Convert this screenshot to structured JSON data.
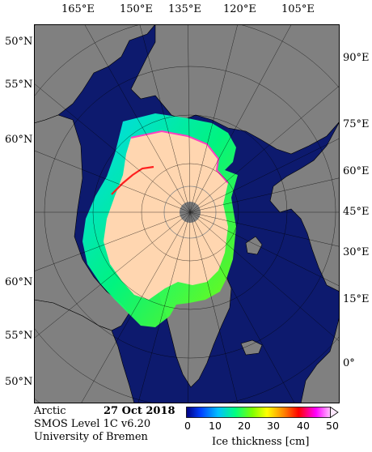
{
  "top_longitudes": [
    "165°E",
    "150°E",
    "135°E",
    "120°E",
    "105°E"
  ],
  "right_labels": [
    "90°E",
    "75°E",
    "60°E",
    "45°E",
    "30°E",
    "15°E",
    "0°"
  ],
  "left_labels": [
    "50°N",
    "55°N",
    "60°N",
    "60°N",
    "55°N",
    "50°N"
  ],
  "footer": {
    "region": "Arctic",
    "date": "27 Oct 2018",
    "product": "SMOS Level 1C v6.20",
    "institution": "University of Bremen"
  },
  "colorbar": {
    "title": "Ice thickness [cm]",
    "ticks": [
      "0",
      "10",
      "20",
      "30",
      "40",
      "50"
    ],
    "range": [
      0,
      50
    ],
    "colors": [
      "#000080",
      "#0040ff",
      "#00c0ff",
      "#00ff80",
      "#80ff00",
      "#ffff00",
      "#ff8000",
      "#ff0000",
      "#ff00ff",
      "#ffc0ff"
    ]
  },
  "map_colors": {
    "ocean": "#0d1a6e",
    "land": "#808080",
    "thick_ice": "#ffd6b0",
    "coast": "#000000"
  }
}
